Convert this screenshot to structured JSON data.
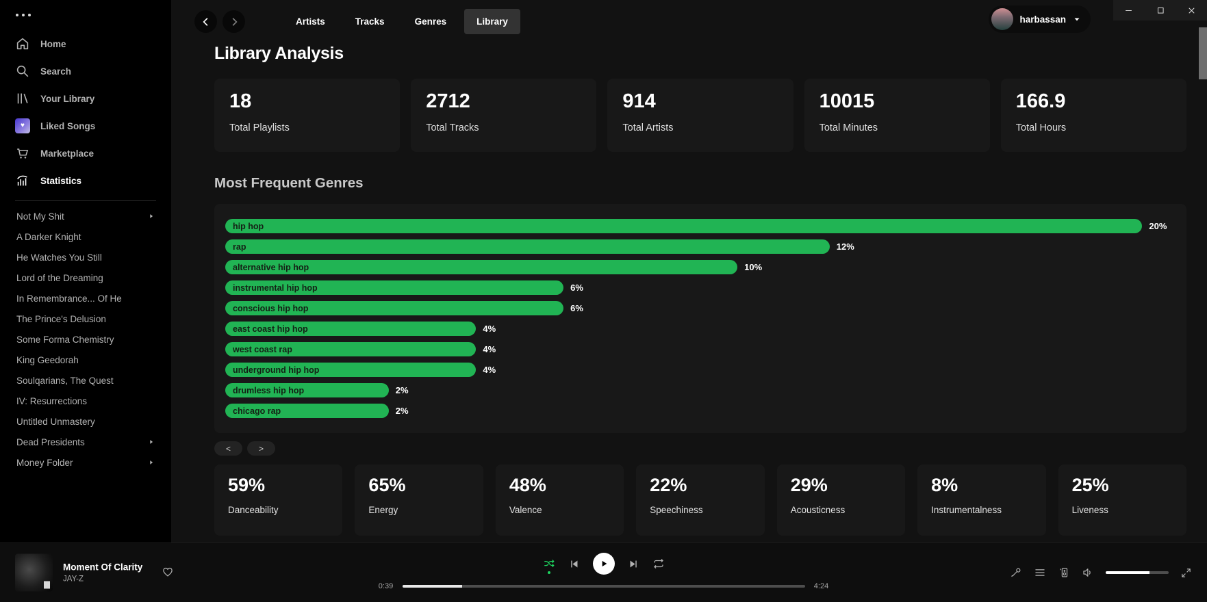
{
  "colors": {
    "background": "#121212",
    "sidebar": "#000000",
    "card": "#181818",
    "bar_green": "#21b454",
    "spotify_green": "#1ed760",
    "active_tab_bg": "#333333"
  },
  "window_controls": {
    "minimize": "minimize-icon",
    "maximize": "maximize-icon",
    "close": "close-icon"
  },
  "topnav": {
    "tabs": [
      {
        "label": "Artists",
        "active": false
      },
      {
        "label": "Tracks",
        "active": false
      },
      {
        "label": "Genres",
        "active": false
      },
      {
        "label": "Library",
        "active": true
      }
    ],
    "user": {
      "name": "harbassan"
    }
  },
  "sidebar": {
    "menu_icon": "ellipsis-icon",
    "nav": [
      {
        "label": "Home",
        "icon": "home-icon",
        "active": false
      },
      {
        "label": "Search",
        "icon": "search-icon",
        "active": false
      },
      {
        "label": "Your Library",
        "icon": "library-icon",
        "active": false
      },
      {
        "label": "Liked Songs",
        "icon": "liked-songs-heart-icon",
        "active": false
      },
      {
        "label": "Marketplace",
        "icon": "cart-icon",
        "active": false
      },
      {
        "label": "Statistics",
        "icon": "stats-icon",
        "active": true
      }
    ],
    "playlists": [
      {
        "label": "Not My Shit",
        "arrow": true
      },
      {
        "label": "A Darker Knight",
        "arrow": false
      },
      {
        "label": "He Watches You Still",
        "arrow": false
      },
      {
        "label": "Lord of the Dreaming",
        "arrow": false
      },
      {
        "label": "In Remembrance... Of He",
        "arrow": false
      },
      {
        "label": "The Prince's Delusion",
        "arrow": false
      },
      {
        "label": "Some Forma Chemistry",
        "arrow": false
      },
      {
        "label": "King Geedorah",
        "arrow": false
      },
      {
        "label": "Soulqarians, The Quest",
        "arrow": false
      },
      {
        "label": "IV: Resurrections",
        "arrow": false
      },
      {
        "label": "Untitled Unmastery",
        "arrow": false
      },
      {
        "label": "Dead Presidents",
        "arrow": true
      },
      {
        "label": "Money Folder",
        "arrow": true
      }
    ]
  },
  "library": {
    "title": "Library Analysis",
    "stats": [
      {
        "value": "18",
        "label": "Total Playlists"
      },
      {
        "value": "2712",
        "label": "Total Tracks"
      },
      {
        "value": "914",
        "label": "Total Artists"
      },
      {
        "value": "10015",
        "label": "Total Minutes"
      },
      {
        "value": "166.9",
        "label": "Total Hours"
      }
    ]
  },
  "genres": {
    "title": "Most Frequent Genres",
    "items": [
      {
        "label": "hip hop",
        "pct": "20%",
        "width_pct": 96.5
      },
      {
        "label": "rap",
        "pct": "12%",
        "width_pct": 63.6
      },
      {
        "label": "alternative hip hop",
        "pct": "10%",
        "width_pct": 53.9
      },
      {
        "label": "instrumental hip hop",
        "pct": "6%",
        "width_pct": 35.6
      },
      {
        "label": "conscious hip hop",
        "pct": "6%",
        "width_pct": 35.6
      },
      {
        "label": "east coast hip hop",
        "pct": "4%",
        "width_pct": 26.4
      },
      {
        "label": "west coast rap",
        "pct": "4%",
        "width_pct": 26.4
      },
      {
        "label": "underground hip hop",
        "pct": "4%",
        "width_pct": 26.4
      },
      {
        "label": "drumless hip hop",
        "pct": "2%",
        "width_pct": 17.2
      },
      {
        "label": "chicago rap",
        "pct": "2%",
        "width_pct": 17.2
      }
    ],
    "chart_data": {
      "type": "bar",
      "orientation": "horizontal",
      "unit": "%",
      "categories": [
        "hip hop",
        "rap",
        "alternative hip hop",
        "instrumental hip hop",
        "conscious hip hop",
        "east coast hip hop",
        "west coast rap",
        "underground hip hop",
        "drumless hip hop",
        "chicago rap"
      ],
      "values": [
        20,
        12,
        10,
        6,
        6,
        4,
        4,
        4,
        2,
        2
      ],
      "title": "Most Frequent Genres"
    },
    "pagination": {
      "prev": "<",
      "next": ">"
    }
  },
  "features": [
    {
      "value": "59%",
      "label": "Danceability"
    },
    {
      "value": "65%",
      "label": "Energy"
    },
    {
      "value": "48%",
      "label": "Valence"
    },
    {
      "value": "22%",
      "label": "Speechiness"
    },
    {
      "value": "29%",
      "label": "Acousticness"
    },
    {
      "value": "8%",
      "label": "Instrumentalness"
    },
    {
      "value": "25%",
      "label": "Liveness"
    }
  ],
  "player": {
    "track": "Moment Of Clarity",
    "artist": "JAY-Z",
    "elapsed": "0:39",
    "total": "4:24",
    "progress_pct": 14.8,
    "volume_pct": 70,
    "icons": [
      "shuffle-icon",
      "previous-icon",
      "play-icon",
      "next-icon",
      "repeat-icon",
      "mic-lyrics-icon",
      "queue-icon",
      "devices-icon",
      "volume-icon",
      "fullscreen-icon",
      "heart-icon"
    ]
  }
}
